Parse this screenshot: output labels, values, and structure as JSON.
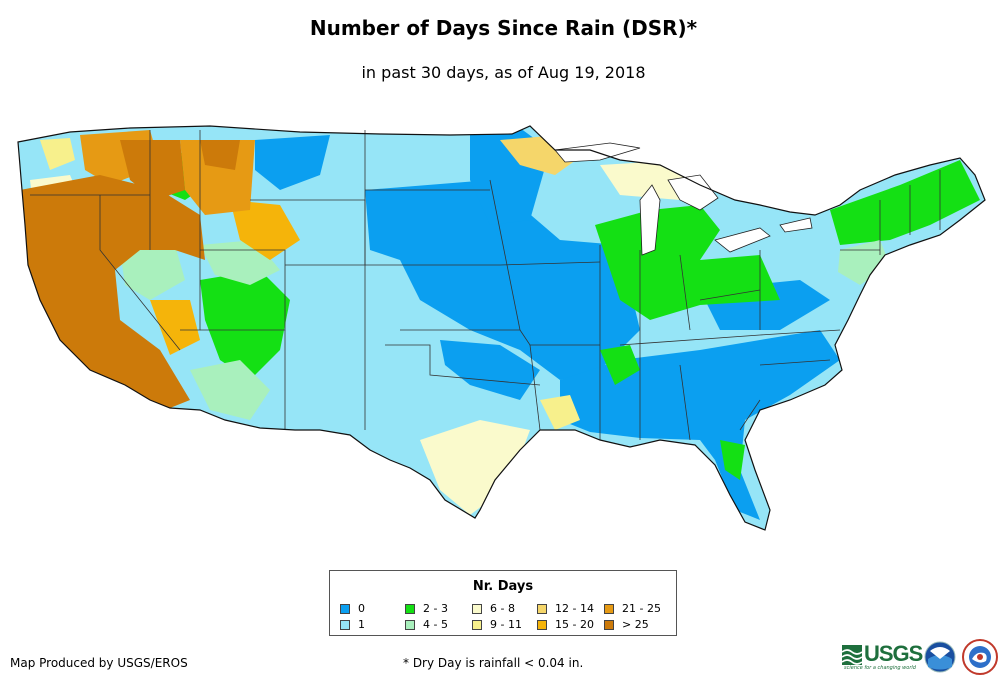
{
  "title": "Number of Days Since Rain (DSR)*",
  "subtitle": "in past 30 days, as of Aug 19, 2018",
  "legend": {
    "title": "Nr. Days",
    "items": [
      {
        "label": "0",
        "color": "#0b9ff0"
      },
      {
        "label": "1",
        "color": "#96e5f7"
      },
      {
        "label": "2 - 3",
        "color": "#14e014"
      },
      {
        "label": "4 - 5",
        "color": "#a9f0bd"
      },
      {
        "label": "6 - 8",
        "color": "#fafacc"
      },
      {
        "label": "9 - 11",
        "color": "#f7f08c"
      },
      {
        "label": "12 - 14",
        "color": "#f5d66a"
      },
      {
        "label": "15 - 20",
        "color": "#f5b40a"
      },
      {
        "label": "21 - 25",
        "color": "#e69a14"
      },
      {
        "label": "> 25",
        "color": "#cc7a0a"
      }
    ]
  },
  "credit": "Map Produced by USGS/EROS",
  "footnote": "* Dry Day is rainfall < 0.04 in.",
  "logos": {
    "usgs": "USGS",
    "usgs_tagline": "science for a changing world",
    "noaa": "noaa-logo",
    "nws": "nws-logo"
  }
}
